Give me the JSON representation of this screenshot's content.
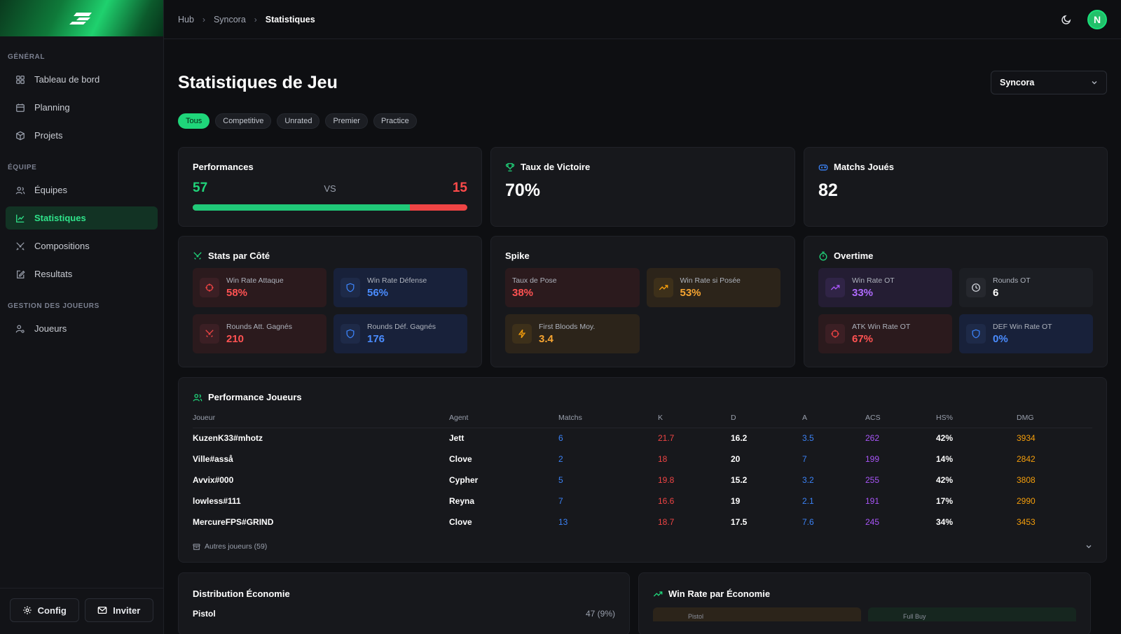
{
  "sidebar": {
    "sections": [
      {
        "label": "GÉNÉRAL",
        "items": [
          {
            "label": "Tableau de bord",
            "icon": "dashboard-icon"
          },
          {
            "label": "Planning",
            "icon": "calendar-icon"
          },
          {
            "label": "Projets",
            "icon": "box-icon"
          }
        ]
      },
      {
        "label": "ÉQUIPE",
        "items": [
          {
            "label": "Équipes",
            "icon": "users-icon"
          },
          {
            "label": "Statistiques",
            "icon": "chart-icon"
          },
          {
            "label": "Compositions",
            "icon": "swords-icon"
          },
          {
            "label": "Resultats",
            "icon": "edit-icon"
          }
        ]
      },
      {
        "label": "GESTION DES JOUEURS",
        "items": [
          {
            "label": "Joueurs",
            "icon": "user-settings-icon"
          }
        ]
      }
    ],
    "config_label": "Config",
    "invite_label": "Inviter"
  },
  "breadcrumb": {
    "items": [
      "Hub",
      "Syncora"
    ],
    "current": "Statistiques"
  },
  "avatar_letter": "N",
  "page": {
    "title": "Statistiques de Jeu",
    "team_select": "Syncora"
  },
  "filters": [
    "Tous",
    "Competitive",
    "Unrated",
    "Premier",
    "Practice"
  ],
  "performances": {
    "title": "Performances",
    "wins": "57",
    "vs": "VS",
    "losses": "15",
    "win_fraction": 0.79
  },
  "win_rate": {
    "title": "Taux de Victoire",
    "value": "70%"
  },
  "matches": {
    "title": "Matchs Joués",
    "value": "82"
  },
  "side_stats": {
    "title": "Stats par Côté",
    "tiles": [
      {
        "label": "Win Rate Attaque",
        "value": "58%"
      },
      {
        "label": "Win Rate Défense",
        "value": "56%"
      },
      {
        "label": "Rounds Att. Gagnés",
        "value": "210"
      },
      {
        "label": "Rounds Déf. Gagnés",
        "value": "176"
      }
    ]
  },
  "spike": {
    "title": "Spike",
    "tiles": [
      {
        "label": "Taux de Pose",
        "value": "38%"
      },
      {
        "label": "Win Rate si Posée",
        "value": "53%"
      },
      {
        "label": "First Bloods Moy.",
        "value": "3.4"
      }
    ]
  },
  "overtime": {
    "title": "Overtime",
    "tiles": [
      {
        "label": "Win Rate OT",
        "value": "33%"
      },
      {
        "label": "Rounds OT",
        "value": "6"
      },
      {
        "label": "ATK Win Rate OT",
        "value": "67%"
      },
      {
        "label": "DEF Win Rate OT",
        "value": "0%"
      }
    ]
  },
  "players": {
    "title": "Performance Joueurs",
    "columns": [
      "Joueur",
      "Agent",
      "Matchs",
      "K",
      "D",
      "A",
      "ACS",
      "HS%",
      "DMG"
    ],
    "rows": [
      [
        "KuzenK33#mhotz",
        "Jett",
        "6",
        "21.7",
        "16.2",
        "3.5",
        "262",
        "42%",
        "3934"
      ],
      [
        "Ville#asså",
        "Clove",
        "2",
        "18",
        "20",
        "7",
        "199",
        "14%",
        "2842"
      ],
      [
        "Avvix#000",
        "Cypher",
        "5",
        "19.8",
        "15.2",
        "3.2",
        "255",
        "42%",
        "3808"
      ],
      [
        "lowless#111",
        "Reyna",
        "7",
        "16.6",
        "19",
        "2.1",
        "191",
        "17%",
        "2990"
      ],
      [
        "MercureFPS#GRIND",
        "Clove",
        "13",
        "18.7",
        "17.5",
        "7.6",
        "245",
        "34%",
        "3453"
      ]
    ],
    "others": "Autres joueurs (59)"
  },
  "economy": {
    "title": "Distribution Économie",
    "row_label": "Pistol",
    "row_value": "47 (9%)"
  },
  "winrate_economy": {
    "title": "Win Rate par Économie",
    "tiles": [
      "Pistol",
      "Full Buy"
    ]
  },
  "colors": {
    "accent": "#20d47a",
    "loss": "#ef4444",
    "blue": "#3b82f6",
    "purple": "#a855f7",
    "amber": "#f59e0b"
  }
}
